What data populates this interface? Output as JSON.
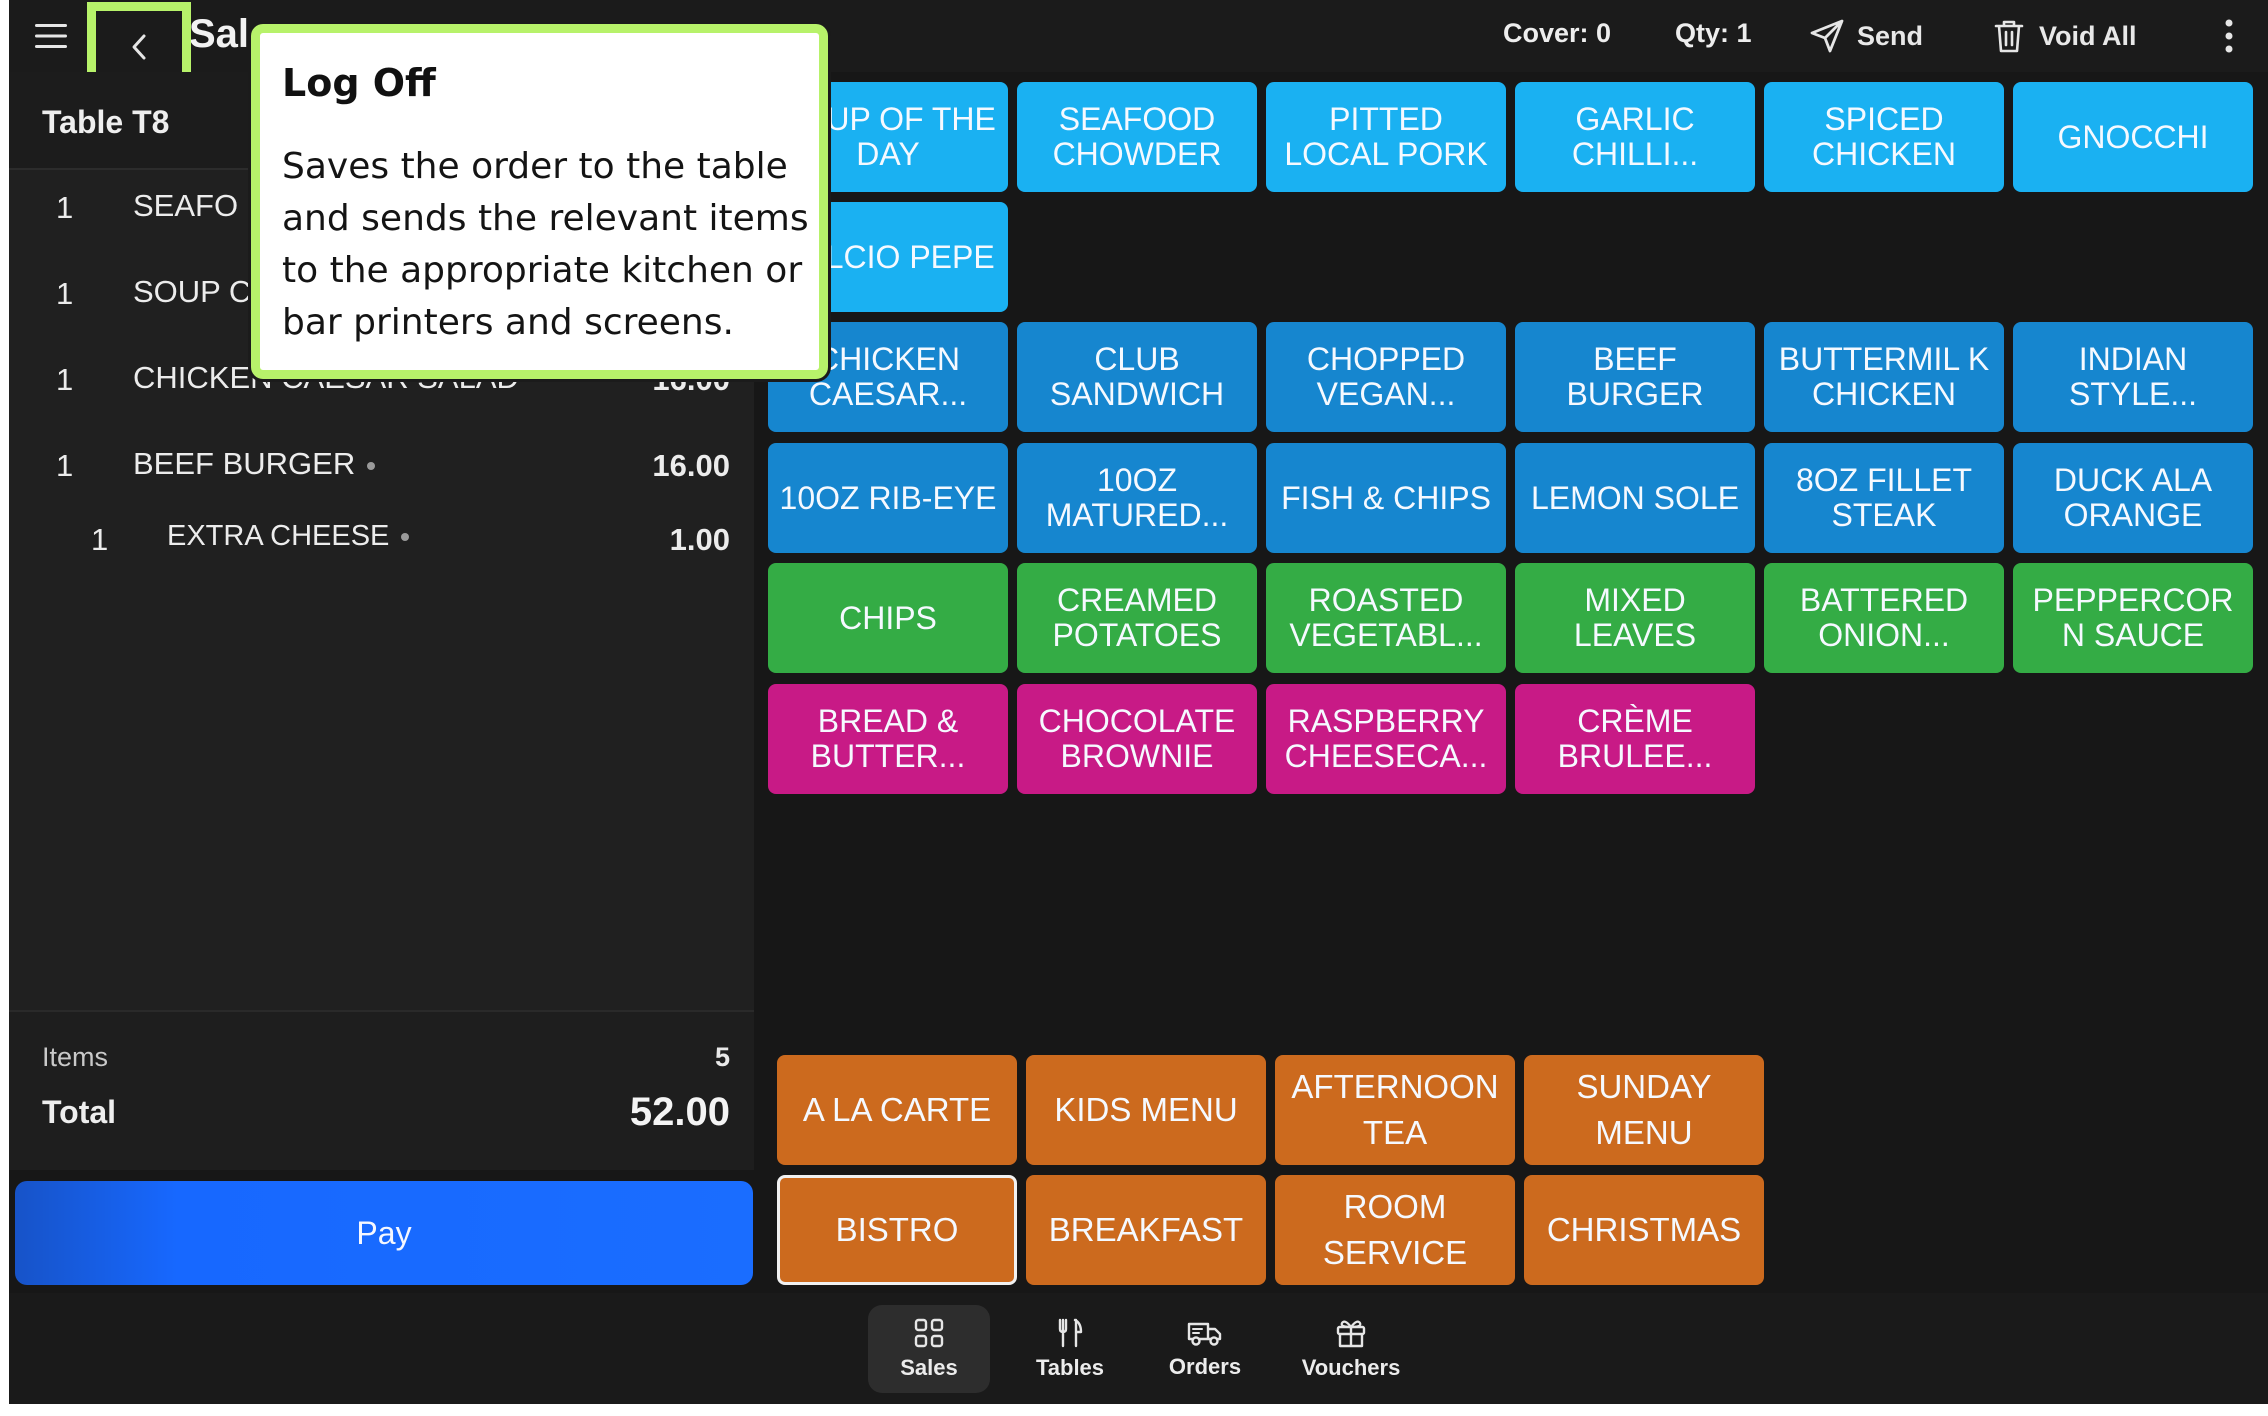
{
  "colors": {
    "light_blue": "#1ab1f2",
    "blue": "#1686cf",
    "green": "#34ac45",
    "pink": "#c81a86",
    "orange": "#cc6a1e",
    "pay_blue": "#1a6dff",
    "highlight": "#b7f26a",
    "background": "#171717"
  },
  "topbar": {
    "title": "Sal",
    "cover": "Cover: 0",
    "qty": "Qty: 1",
    "send_label": "Send",
    "void_all_label": "Void All",
    "icons": [
      "hamburger-menu-icon",
      "chevron-left-icon",
      "paper-plane-icon",
      "trash-icon",
      "more-vertical-icon"
    ]
  },
  "order": {
    "table": "Table T8",
    "lines": [
      {
        "qty": "1",
        "name": "SEAFO",
        "price": ""
      },
      {
        "qty": "1",
        "name": "SOUP C",
        "price": ""
      },
      {
        "qty": "1",
        "name": "CHICKEN CAESAR SALAD",
        "price": "16.00"
      },
      {
        "qty": "1",
        "name": "BEEF BURGER",
        "price": "16.00"
      },
      {
        "qty": "1",
        "name": "EXTRA CHEESE",
        "price": "1.00"
      }
    ],
    "items_label": "Items",
    "items_count": "5",
    "total_label": "Total",
    "total_value": "52.00",
    "pay_label": "Pay"
  },
  "products": {
    "row1": [
      "SOUP OF THE DAY",
      "SEAFOOD CHOWDER",
      "PITTED LOCAL PORK",
      "GARLIC CHILLI...",
      "SPICED CHICKEN",
      "GNOCCHI"
    ],
    "row2": [
      "CALCIO PEPE"
    ],
    "row3": [
      "CHICKEN CAESAR...",
      "CLUB SANDWICH",
      "CHOPPED VEGAN...",
      "BEEF BURGER",
      "BUTTERMIL K CHICKEN",
      "INDIAN STYLE..."
    ],
    "row4": [
      "10OZ RIB-EYE",
      "10OZ MATURED...",
      "FISH & CHIPS",
      "LEMON SOLE",
      "8OZ FILLET STEAK",
      "DUCK ALA ORANGE"
    ],
    "row5": [
      "CHIPS",
      "CREAMED POTATOES",
      "ROASTED VEGETABL...",
      "MIXED LEAVES",
      "BATTERED ONION...",
      "PEPPERCOR N SAUCE"
    ],
    "row6": [
      "BREAD & BUTTER...",
      "CHOCOLATE BROWNIE",
      "RASPBERRY CHEESECA...",
      "CRÈME BRULEE..."
    ]
  },
  "menus": {
    "row1": [
      "A LA CARTE",
      "KIDS MENU",
      "AFTERNOON TEA",
      "SUNDAY MENU"
    ],
    "row2": [
      "BISTRO",
      "BREAKFAST",
      "ROOM SERVICE",
      "CHRISTMAS"
    ],
    "selected": "BISTRO"
  },
  "nav": [
    {
      "label": "Sales",
      "icon": "grid-icon",
      "active": true
    },
    {
      "label": "Tables",
      "icon": "cutlery-icon",
      "active": false
    },
    {
      "label": "Orders",
      "icon": "delivery-truck-icon",
      "active": false
    },
    {
      "label": "Vouchers",
      "icon": "gift-icon",
      "active": false
    }
  ],
  "tooltip": {
    "title": "Log Off",
    "body": "Saves the order to the table and sends the relevant items to the appropriate kitchen or bar printers and screens."
  }
}
